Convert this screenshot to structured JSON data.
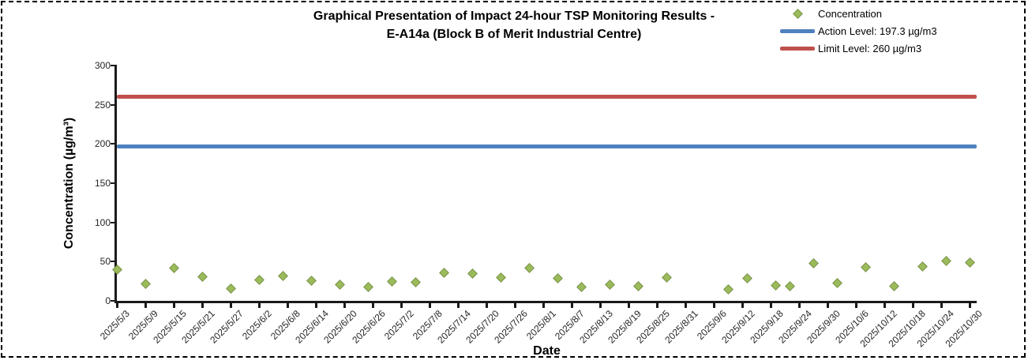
{
  "chart_data": {
    "type": "scatter",
    "title_lines": [
      "Graphical Presentation of Impact 24-hour TSP Monitoring Results -",
      "E-A14a (Block B of Merit Industrial Centre)"
    ],
    "xlabel": "Date",
    "ylabel": "Concentration (µg/m³)",
    "ylim": [
      0,
      300
    ],
    "y_ticks": [
      0,
      50,
      100,
      150,
      200,
      250,
      300
    ],
    "x_tick_labels": [
      "2025/5/3",
      "2025/5/9",
      "2025/5/15",
      "2025/5/21",
      "2025/5/27",
      "2025/6/2",
      "2025/6/8",
      "2025/6/14",
      "2025/6/20",
      "2025/6/26",
      "2025/7/2",
      "2025/7/8",
      "2025/7/14",
      "2025/7/20",
      "2025/7/26",
      "2025/8/1",
      "2025/8/7",
      "2025/8/13",
      "2025/8/19",
      "2025/8/25",
      "2025/8/31",
      "2025/9/6",
      "2025/9/12",
      "2025/9/18",
      "2025/9/24",
      "2025/9/30",
      "2025/10/6",
      "2025/10/12",
      "2025/10/18",
      "2025/10/24",
      "2025/10/30"
    ],
    "grid": "off",
    "legend_position": "top-right",
    "legend": [
      {
        "label": "Concentration",
        "swatch": "diamond",
        "color": "#9BBB59"
      },
      {
        "label": "Action Level: 197.3 µg/m3",
        "swatch": "line",
        "color": "#4E81BD"
      },
      {
        "label": "Limit Level: 260 µg/m3",
        "swatch": "line",
        "color": "#C0504D"
      }
    ],
    "action_level": {
      "value": 197.3,
      "color": "#4E81BD"
    },
    "limit_level": {
      "value": 260,
      "color": "#C0504D"
    },
    "series": [
      {
        "name": "Concentration",
        "marker": "diamond",
        "marker_fill": "#9BBB59",
        "marker_stroke": "#79924E",
        "points": [
          [
            "2025/5/3",
            40
          ],
          [
            "2025/5/9",
            22
          ],
          [
            "2025/5/15",
            42
          ],
          [
            "2025/5/21",
            31
          ],
          [
            "2025/5/27",
            16
          ],
          [
            "2025/6/2",
            27
          ],
          [
            "2025/6/7",
            32
          ],
          [
            "2025/6/13",
            26
          ],
          [
            "2025/6/19",
            21
          ],
          [
            "2025/6/25",
            18
          ],
          [
            "2025/6/30",
            25
          ],
          [
            "2025/7/5",
            24
          ],
          [
            "2025/7/11",
            36
          ],
          [
            "2025/7/17",
            35
          ],
          [
            "2025/7/23",
            30
          ],
          [
            "2025/7/29",
            42
          ],
          [
            "2025/8/4",
            29
          ],
          [
            "2025/8/9",
            18
          ],
          [
            "2025/8/15",
            21
          ],
          [
            "2025/8/21",
            19
          ],
          [
            "2025/8/27",
            30
          ],
          [
            "2025/9/9",
            15
          ],
          [
            "2025/9/13",
            29
          ],
          [
            "2025/9/19",
            20
          ],
          [
            "2025/9/22",
            19
          ],
          [
            "2025/9/27",
            48
          ],
          [
            "2025/10/2",
            23
          ],
          [
            "2025/10/8",
            43
          ],
          [
            "2025/10/14",
            19
          ],
          [
            "2025/10/20",
            44
          ],
          [
            "2025/10/25",
            51
          ],
          [
            "2025/10/30",
            49
          ]
        ]
      }
    ],
    "colors": {
      "axis": "#1a1a1a",
      "marker_fill": "#9BBB59",
      "marker_stroke": "#79924E"
    }
  }
}
